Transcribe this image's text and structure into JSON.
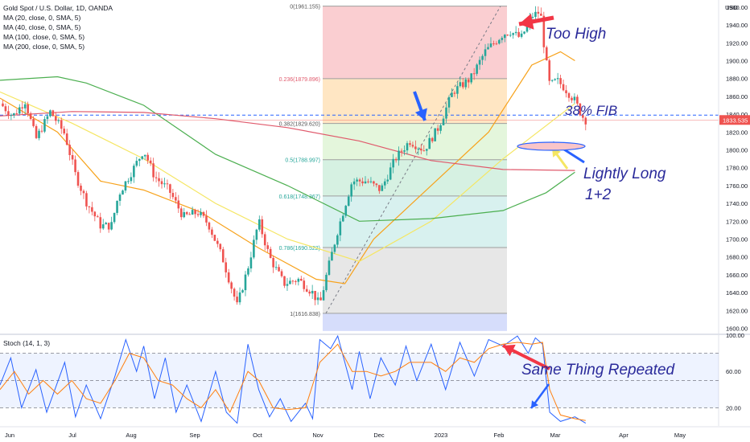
{
  "header": {
    "symbol": "Gold Spot / U.S. Dollar, 1D, OANDA",
    "indicators": [
      "MA (20, close, 0, SMA, 5)",
      "MA (40, close, 0, SMA, 5)",
      "MA (100, close, 0, SMA, 5)",
      "MA (200, close, 0, SMA, 5)"
    ],
    "stoch_label": "Stoch (14, 1, 3)",
    "currency": "USD"
  },
  "colors": {
    "bull": "#26a69a",
    "bear": "#ef5350",
    "ma20": "#f7a21b",
    "ma40": "#f5e663",
    "ma100": "#4caf50",
    "ma200": "#e05a6c",
    "stoch_k": "#2962ff",
    "stoch_d": "#ff7f0e",
    "annotation_red": "#f23645",
    "annotation_blue": "#2962ff",
    "annotation_yellow": "#f5e663"
  },
  "chart_data": [
    {
      "type": "candlestick",
      "title": "Gold Spot / U.S. Dollar, 1D, OANDA",
      "x_ticks": [
        "Jun",
        "Jul",
        "Aug",
        "Sep",
        "Oct",
        "Nov",
        "Dec",
        "2023",
        "Feb",
        "Mar",
        "Apr",
        "May"
      ],
      "y_ticks": [
        1600,
        1620,
        1640,
        1660,
        1680,
        1700,
        1720,
        1740,
        1760,
        1780,
        1800,
        1820,
        1840,
        1860,
        1880,
        1900,
        1920,
        1940,
        1960
      ],
      "ylim": [
        1596,
        1968
      ],
      "ylabel": "USD",
      "last_price": "1833.535",
      "dashed_level": 1839,
      "price_path": [
        [
          0,
          1852
        ],
        [
          0.018,
          1838
        ],
        [
          0.035,
          1855
        ],
        [
          0.05,
          1812
        ],
        [
          0.07,
          1843
        ],
        [
          0.09,
          1818
        ],
        [
          0.105,
          1772
        ],
        [
          0.12,
          1742
        ],
        [
          0.14,
          1715
        ],
        [
          0.155,
          1715
        ],
        [
          0.165,
          1750
        ],
        [
          0.185,
          1778
        ],
        [
          0.2,
          1800
        ],
        [
          0.215,
          1770
        ],
        [
          0.235,
          1755
        ],
        [
          0.255,
          1725
        ],
        [
          0.275,
          1730
        ],
        [
          0.29,
          1717
        ],
        [
          0.31,
          1678
        ],
        [
          0.33,
          1625
        ],
        [
          0.345,
          1668
        ],
        [
          0.36,
          1720
        ],
        [
          0.375,
          1680
        ],
        [
          0.395,
          1650
        ],
        [
          0.415,
          1655
        ],
        [
          0.435,
          1640
        ],
        [
          0.445,
          1626
        ],
        [
          0.455,
          1662
        ],
        [
          0.47,
          1710
        ],
        [
          0.49,
          1765
        ],
        [
          0.51,
          1765
        ],
        [
          0.53,
          1755
        ],
        [
          0.55,
          1790
        ],
        [
          0.57,
          1810
        ],
        [
          0.59,
          1800
        ],
        [
          0.61,
          1825
        ],
        [
          0.63,
          1865
        ],
        [
          0.655,
          1880
        ],
        [
          0.675,
          1910
        ],
        [
          0.7,
          1930
        ],
        [
          0.71,
          1933
        ],
        [
          0.725,
          1925
        ],
        [
          0.74,
          1950
        ],
        [
          0.752,
          1955
        ],
        [
          0.758,
          1910
        ],
        [
          0.765,
          1872
        ],
        [
          0.775,
          1878
        ],
        [
          0.785,
          1870
        ],
        [
          0.8,
          1855
        ],
        [
          0.81,
          1838
        ],
        [
          0.815,
          1833.535
        ]
      ],
      "moving_averages": [
        {
          "name": "MA 20",
          "points": [
            [
              0,
              1858
            ],
            [
              0.08,
              1820
            ],
            [
              0.14,
              1765
            ],
            [
              0.2,
              1755
            ],
            [
              0.28,
              1730
            ],
            [
              0.36,
              1690
            ],
            [
              0.44,
              1655
            ],
            [
              0.48,
              1650
            ],
            [
              0.52,
              1700
            ],
            [
              0.6,
              1760
            ],
            [
              0.68,
              1820
            ],
            [
              0.74,
              1895
            ],
            [
              0.78,
              1910
            ],
            [
              0.8,
              1900
            ]
          ]
        },
        {
          "name": "MA 40",
          "points": [
            [
              0,
              1865
            ],
            [
              0.1,
              1830
            ],
            [
              0.2,
              1790
            ],
            [
              0.3,
              1740
            ],
            [
              0.4,
              1700
            ],
            [
              0.5,
              1675
            ],
            [
              0.6,
              1720
            ],
            [
              0.7,
              1790
            ],
            [
              0.8,
              1852
            ]
          ]
        },
        {
          "name": "MA 100",
          "points": [
            [
              0,
              1878
            ],
            [
              0.08,
              1882
            ],
            [
              0.12,
              1875
            ],
            [
              0.2,
              1850
            ],
            [
              0.3,
              1795
            ],
            [
              0.4,
              1760
            ],
            [
              0.5,
              1720
            ],
            [
              0.6,
              1723
            ],
            [
              0.7,
              1732
            ],
            [
              0.76,
              1752
            ],
            [
              0.8,
              1775
            ]
          ]
        },
        {
          "name": "MA 200",
          "points": [
            [
              0,
              1838
            ],
            [
              0.1,
              1843
            ],
            [
              0.2,
              1842
            ],
            [
              0.3,
              1835
            ],
            [
              0.4,
              1825
            ],
            [
              0.5,
              1810
            ],
            [
              0.6,
              1788
            ],
            [
              0.7,
              1778
            ],
            [
              0.8,
              1777
            ]
          ]
        }
      ],
      "fibonacci": [
        {
          "label": "0(1961.155)",
          "level": 0,
          "value": 1961.155,
          "fill": "#f9c5c9"
        },
        {
          "label": "0.236(1879.896)",
          "level": 0.236,
          "value": 1879.896,
          "fill": "#ffe2b8"
        },
        {
          "label": "0.382(1829.620)",
          "level": 0.382,
          "value": 1829.62,
          "fill": "#dff4d6"
        },
        {
          "label": "0.5(1788.997)",
          "level": 0.5,
          "value": 1788.997,
          "fill": "#cfeedd"
        },
        {
          "label": "0.618(1748.367)",
          "level": 0.618,
          "value": 1748.367,
          "fill": "#d1efec"
        },
        {
          "label": "0.786(1690.522)",
          "level": 0.786,
          "value": 1690.522,
          "fill": "#e3e3e3"
        },
        {
          "label": "1(1616.838)",
          "level": 1,
          "value": 1616.838,
          "fill": "#d6ddfb"
        }
      ],
      "annotations": [
        "Too High",
        "38% FIB",
        "Lightly Long",
        "1+2"
      ]
    },
    {
      "type": "line",
      "title": "Stoch (14, 1, 3)",
      "y_ticks": [
        20,
        60,
        100
      ],
      "ylim": [
        0,
        100
      ],
      "bands": [
        20,
        50,
        80
      ],
      "annotation": "Same Thing Repeated",
      "series": [
        {
          "name": "%K",
          "points": [
            [
              0,
              45
            ],
            [
              0.015,
              75
            ],
            [
              0.03,
              20
            ],
            [
              0.05,
              62
            ],
            [
              0.065,
              15
            ],
            [
              0.09,
              70
            ],
            [
              0.105,
              10
            ],
            [
              0.12,
              45
            ],
            [
              0.14,
              8
            ],
            [
              0.16,
              55
            ],
            [
              0.175,
              95
            ],
            [
              0.19,
              60
            ],
            [
              0.2,
              88
            ],
            [
              0.215,
              30
            ],
            [
              0.23,
              75
            ],
            [
              0.245,
              15
            ],
            [
              0.26,
              45
            ],
            [
              0.28,
              5
            ],
            [
              0.3,
              60
            ],
            [
              0.315,
              15
            ],
            [
              0.33,
              3
            ],
            [
              0.345,
              90
            ],
            [
              0.36,
              40
            ],
            [
              0.375,
              10
            ],
            [
              0.39,
              30
            ],
            [
              0.405,
              5
            ],
            [
              0.425,
              25
            ],
            [
              0.435,
              8
            ],
            [
              0.445,
              95
            ],
            [
              0.46,
              85
            ],
            [
              0.47,
              99
            ],
            [
              0.49,
              40
            ],
            [
              0.5,
              82
            ],
            [
              0.515,
              30
            ],
            [
              0.53,
              75
            ],
            [
              0.55,
              45
            ],
            [
              0.565,
              88
            ],
            [
              0.58,
              50
            ],
            [
              0.6,
              90
            ],
            [
              0.62,
              40
            ],
            [
              0.64,
              92
            ],
            [
              0.66,
              55
            ],
            [
              0.68,
              95
            ],
            [
              0.7,
              88
            ],
            [
              0.72,
              99
            ],
            [
              0.735,
              80
            ],
            [
              0.745,
              97
            ],
            [
              0.755,
              90
            ],
            [
              0.765,
              15
            ],
            [
              0.78,
              5
            ],
            [
              0.8,
              10
            ],
            [
              0.815,
              3
            ]
          ]
        },
        {
          "name": "%D",
          "points": [
            [
              0,
              40
            ],
            [
              0.02,
              60
            ],
            [
              0.04,
              35
            ],
            [
              0.06,
              50
            ],
            [
              0.08,
              35
            ],
            [
              0.1,
              50
            ],
            [
              0.12,
              30
            ],
            [
              0.14,
              25
            ],
            [
              0.16,
              50
            ],
            [
              0.18,
              80
            ],
            [
              0.2,
              75
            ],
            [
              0.22,
              50
            ],
            [
              0.24,
              45
            ],
            [
              0.26,
              30
            ],
            [
              0.28,
              20
            ],
            [
              0.3,
              40
            ],
            [
              0.32,
              15
            ],
            [
              0.345,
              60
            ],
            [
              0.36,
              50
            ],
            [
              0.38,
              20
            ],
            [
              0.4,
              18
            ],
            [
              0.425,
              20
            ],
            [
              0.445,
              70
            ],
            [
              0.47,
              90
            ],
            [
              0.49,
              60
            ],
            [
              0.51,
              60
            ],
            [
              0.53,
              55
            ],
            [
              0.55,
              60
            ],
            [
              0.57,
              70
            ],
            [
              0.6,
              70
            ],
            [
              0.62,
              60
            ],
            [
              0.64,
              75
            ],
            [
              0.66,
              70
            ],
            [
              0.68,
              85
            ],
            [
              0.7,
              90
            ],
            [
              0.72,
              92
            ],
            [
              0.74,
              90
            ],
            [
              0.755,
              92
            ],
            [
              0.765,
              40
            ],
            [
              0.78,
              12
            ],
            [
              0.8,
              8
            ],
            [
              0.815,
              6
            ]
          ]
        }
      ]
    }
  ]
}
